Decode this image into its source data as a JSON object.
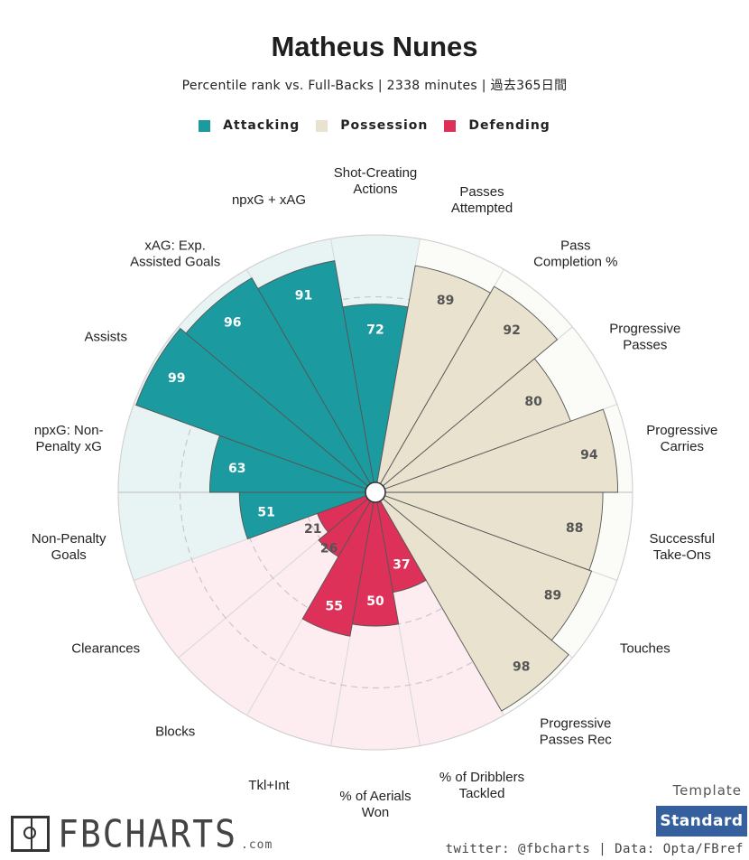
{
  "header": {
    "title": "Matheus Nunes",
    "subtitle": "Percentile rank vs. Full-Backs | 2338 minutes | 過去365日間"
  },
  "legend": {
    "items": [
      {
        "label": "Attacking",
        "color": "#1b9ba0"
      },
      {
        "label": "Possession",
        "color": "#e8e2cf"
      },
      {
        "label": "Defending",
        "color": "#de3159"
      }
    ]
  },
  "chart_data": {
    "type": "polar-bar",
    "title": "Matheus Nunes",
    "rlim": [
      0,
      100
    ],
    "categories": [
      "Shot-Creating Actions",
      "Passes Attempted",
      "Pass Completion %",
      "Progressive Passes",
      "Progressive Carries",
      "Successful Take-Ons",
      "Touches",
      "Progressive Passes Rec",
      "% of Dribblers Tackled",
      "% of Aerials Won",
      "Tkl+Int",
      "Blocks",
      "Clearances",
      "Non-Penalty Goals",
      "npxG: Non-Penalty xG",
      "Assists",
      "xAG: Exp. Assisted Goals",
      "npxG + xAG"
    ],
    "labels": [
      [
        "Shot-Creating",
        "Actions"
      ],
      [
        "Passes",
        "Attempted"
      ],
      [
        "Pass",
        "Completion %"
      ],
      [
        "Progressive",
        "Passes"
      ],
      [
        "Progressive",
        "Carries"
      ],
      [
        "Successful",
        "Take-Ons"
      ],
      [
        "Touches"
      ],
      [
        "Progressive",
        "Passes Rec"
      ],
      [
        "% of Dribblers",
        "Tackled"
      ],
      [
        "% of Aerials",
        "Won"
      ],
      [
        "Tkl+Int"
      ],
      [
        "Blocks"
      ],
      [
        "Clearances"
      ],
      [
        "Non-Penalty",
        "Goals"
      ],
      [
        "npxG: Non-",
        "Penalty xG"
      ],
      [
        "Assists"
      ],
      [
        "xAG: Exp.",
        "Assisted Goals"
      ],
      [
        "npxG + xAG"
      ]
    ],
    "values": [
      72,
      89,
      92,
      80,
      94,
      88,
      89,
      98,
      37,
      50,
      55,
      26,
      21,
      51,
      63,
      99,
      96,
      91
    ],
    "groups": [
      "Attacking",
      "Possession",
      "Possession",
      "Possession",
      "Possession",
      "Possession",
      "Possession",
      "Possession",
      "Defending",
      "Defending",
      "Defending",
      "Defending",
      "Defending",
      "Attacking",
      "Attacking",
      "Attacking",
      "Attacking",
      "Attacking"
    ],
    "group_colors": {
      "Attacking": "#1b9ba0",
      "Possession": "#e8e2cf",
      "Defending": "#de3159"
    },
    "group_bg_colors": {
      "Attacking": "#e8f4f4",
      "Possession": "#fbfbf8",
      "Defending": "#fdecf0"
    }
  },
  "template": {
    "label": "Template",
    "button": "Standard"
  },
  "brand": {
    "name": "FBCHARTS",
    "domain": ".com"
  },
  "footer": {
    "credit": "twitter: @fbcharts | Data: Opta/FBref"
  }
}
